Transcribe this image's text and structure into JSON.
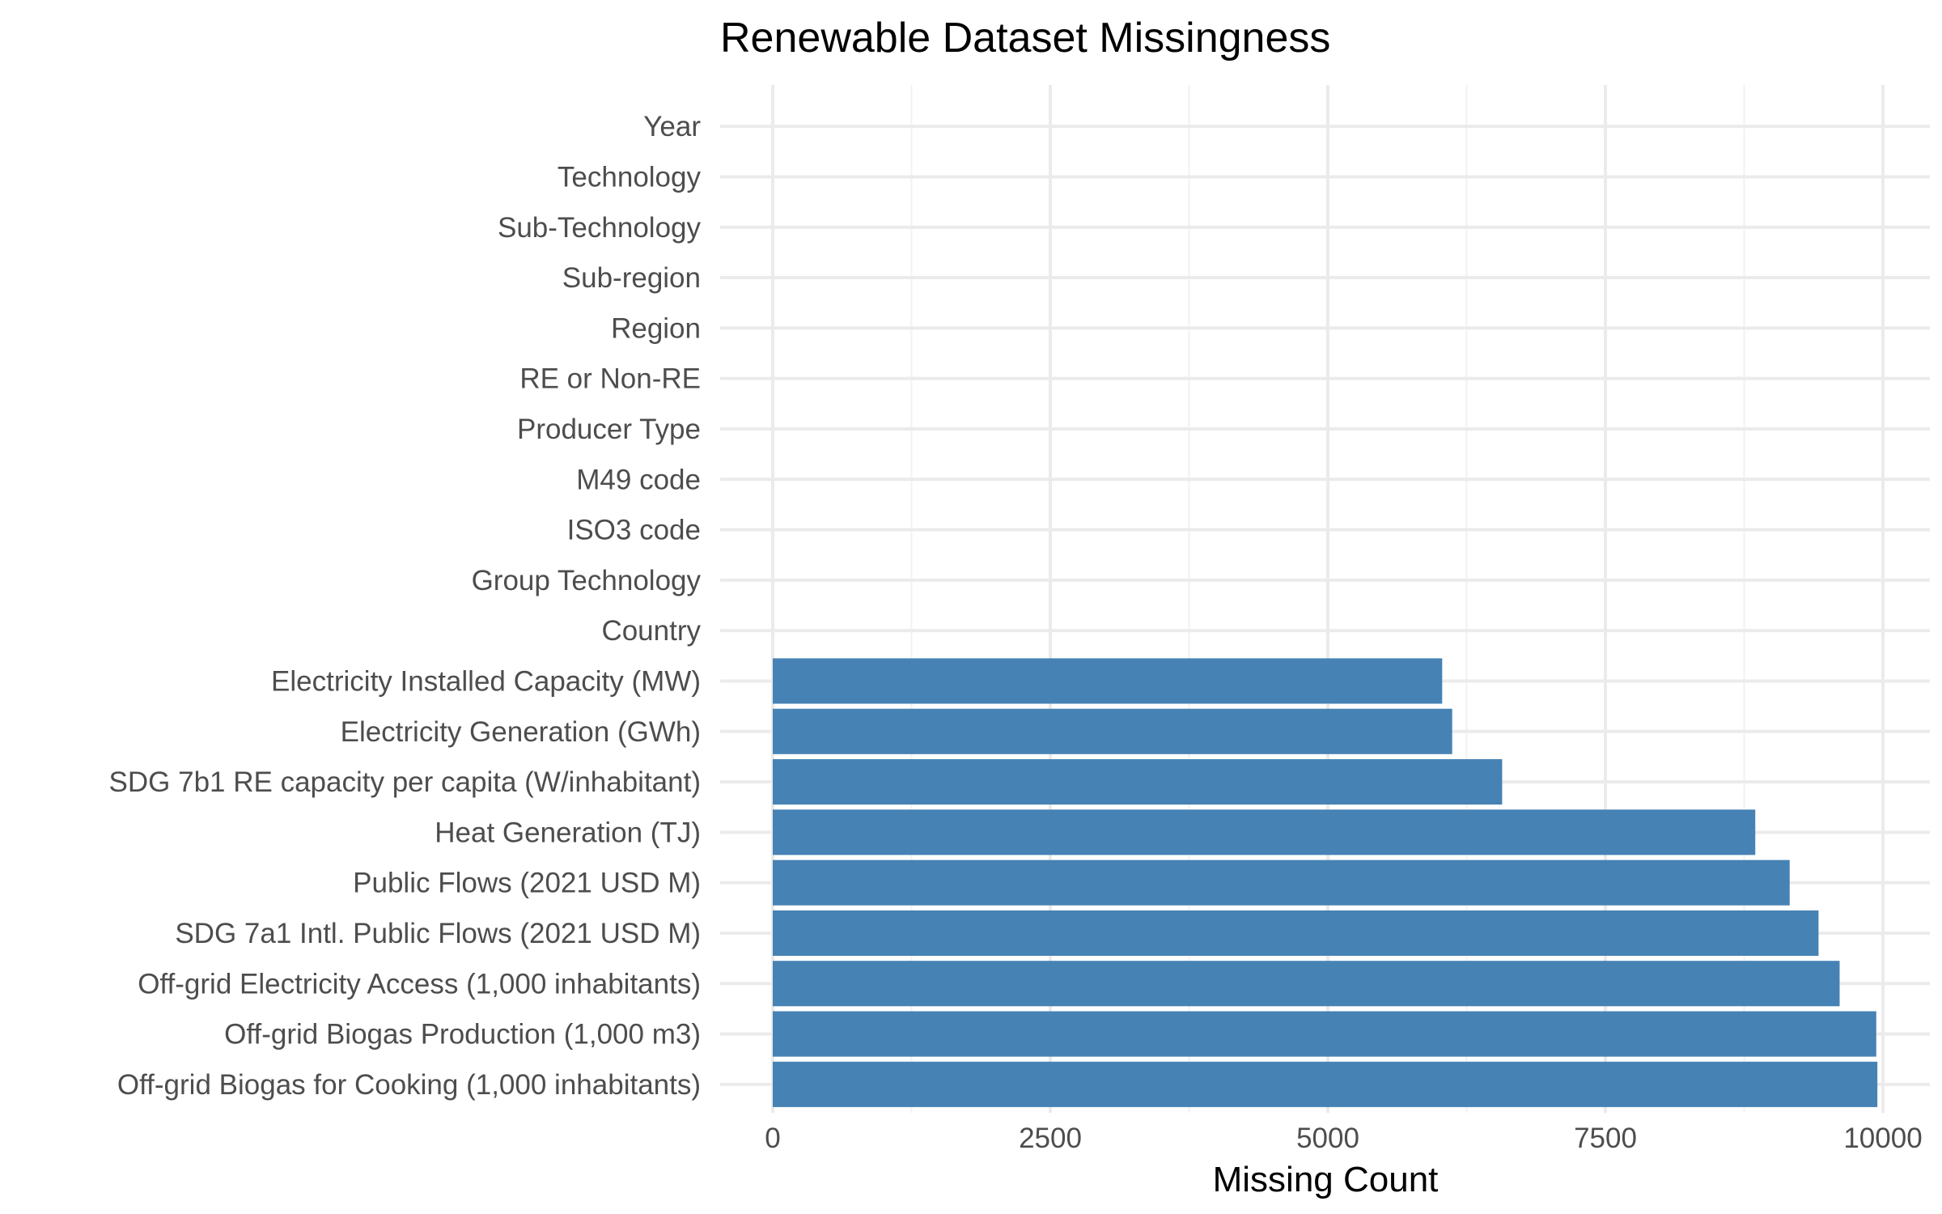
{
  "chart_data": {
    "type": "bar",
    "orientation": "horizontal",
    "title": "Renewable Dataset Missingness",
    "xlabel": "Missing Count",
    "ylabel": "",
    "xlim": [
      0,
      10000
    ],
    "x_ticks": [
      0,
      2500,
      5000,
      7500,
      10000
    ],
    "x_tick_labels": [
      "0",
      "2500",
      "5000",
      "7500",
      "10000"
    ],
    "grid": true,
    "legend": "none",
    "bar_color": "#4682b4",
    "categories": [
      "Year",
      "Technology",
      "Sub-Technology",
      "Sub-region",
      "Region",
      "RE or Non-RE",
      "Producer Type",
      "M49 code",
      "ISO3 code",
      "Group Technology",
      "Country",
      "Electricity Installed Capacity (MW)",
      "Electricity Generation (GWh)",
      "SDG 7b1 RE capacity per capita (W/inhabitant)",
      "Heat Generation (TJ)",
      "Public Flows (2021 USD M)",
      "SDG 7a1 Intl. Public Flows (2021 USD M)",
      "Off-grid Electricity Access (1,000 inhabitants)",
      "Off-grid Biogas Production (1,000 m3)",
      "Off-grid Biogas for Cooking (1,000 inhabitants)"
    ],
    "values": [
      0,
      0,
      0,
      0,
      0,
      0,
      0,
      0,
      0,
      0,
      0,
      6030,
      6120,
      6570,
      8850,
      9160,
      9420,
      9610,
      9940,
      9950
    ]
  }
}
